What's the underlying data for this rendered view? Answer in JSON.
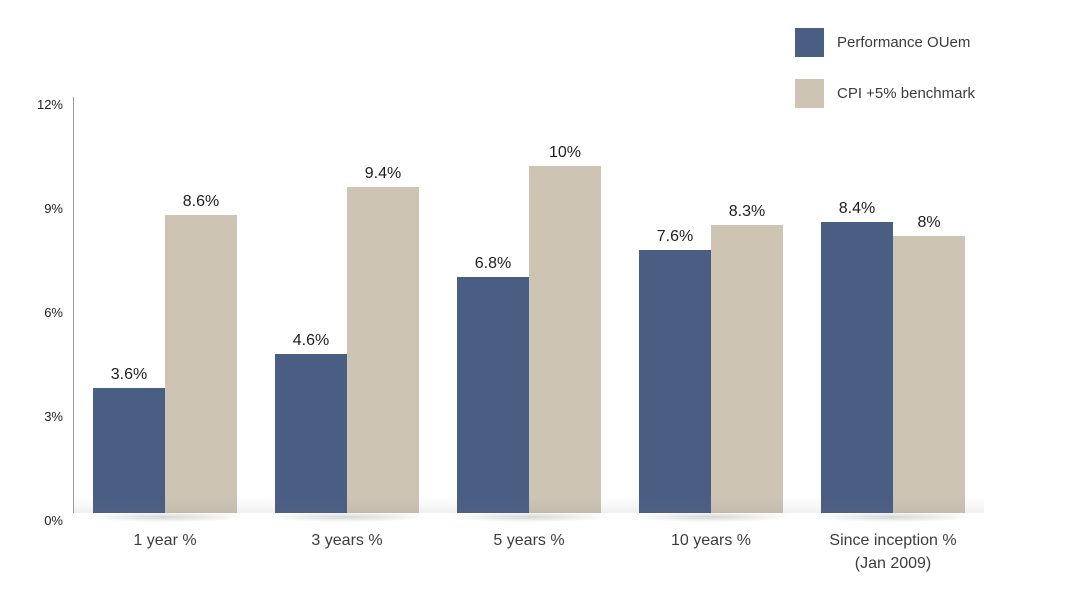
{
  "chart_data": {
    "type": "bar",
    "title": "",
    "categories": [
      "1 year %",
      "3 years %",
      "5 years %",
      "10 years %",
      "Since inception %\n(Jan 2009)"
    ],
    "series": [
      {
        "name": "Performance OUem",
        "color": "#4a5e84",
        "values": [
          3.6,
          4.6,
          6.8,
          7.6,
          8.4
        ],
        "value_labels": [
          "3.6%",
          "4.6%",
          "6.8%",
          "7.6%",
          "8.4%"
        ]
      },
      {
        "name": "CPI +5% benchmark",
        "color": "#cdc4b4",
        "values": [
          8.6,
          9.4,
          10,
          8.3,
          8
        ],
        "value_labels": [
          "8.6%",
          "9.4%",
          "10%",
          "8.3%",
          "8%"
        ]
      }
    ],
    "y_axis": {
      "ticks": [
        0,
        3,
        6,
        9,
        12
      ],
      "tick_labels": [
        "0%",
        "3%",
        "6%",
        "9%",
        "12%"
      ],
      "ylim": [
        0,
        12
      ]
    },
    "grid": false,
    "legend_position": "top-right",
    "colors": {
      "axis_line": "#9a9a9a",
      "tick_text": "#1d1d1d",
      "value_text": "#1d1d1d",
      "category_text": "#3c3c3c"
    }
  }
}
